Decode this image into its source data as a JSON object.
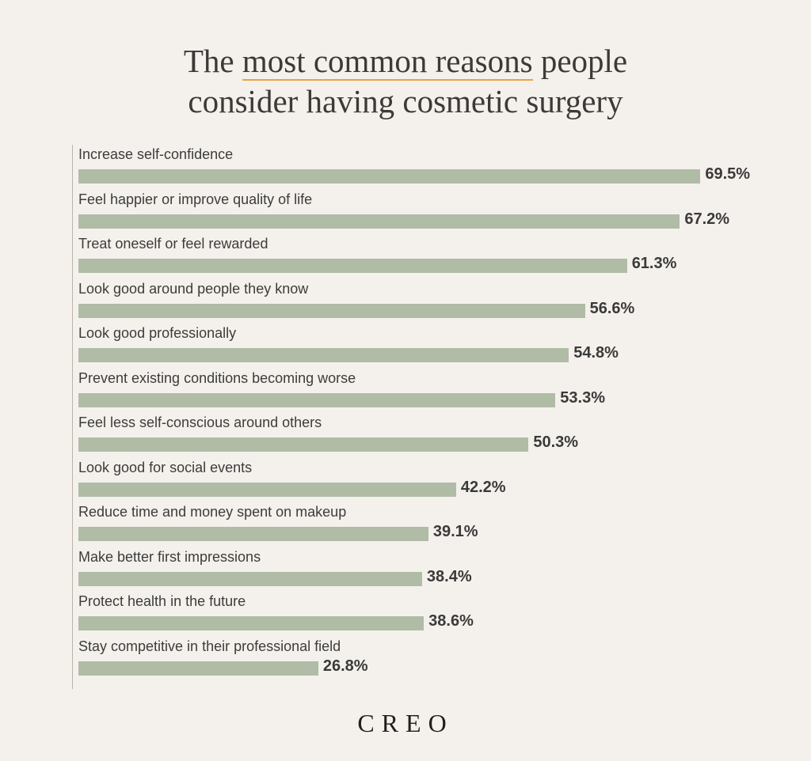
{
  "title": {
    "line1_prefix": "The ",
    "line1_highlight": "most common reasons",
    "line1_suffix": " people",
    "line2": "consider having cosmetic surgery"
  },
  "brand": "CREO",
  "colors": {
    "background": "#f4f1ec",
    "bar": "#b0bca6",
    "highlight_underline": "#e8a24a",
    "text": "#3a3a3a"
  },
  "chart_data": {
    "type": "bar",
    "orientation": "horizontal",
    "title": "The most common reasons people consider having cosmetic surgery",
    "xlabel": "",
    "ylabel": "",
    "xlim": [
      0,
      100
    ],
    "unit": "%",
    "grid": false,
    "categories": [
      "Increase self-confidence",
      "Feel happier or improve quality of life",
      "Treat oneself or feel rewarded",
      "Look good around people they know",
      "Look good professionally",
      "Prevent existing conditions becoming worse",
      "Feel less self-conscious around others",
      "Look good for social events",
      "Reduce time and money spent on makeup",
      "Make better first impressions",
      "Protect health in the future",
      "Stay competitive in their professional field"
    ],
    "values": [
      69.5,
      67.2,
      61.3,
      56.6,
      54.8,
      53.3,
      50.3,
      42.2,
      39.1,
      38.4,
      38.6,
      26.8
    ],
    "value_labels": [
      "69.5%",
      "67.2%",
      "61.3%",
      "56.6%",
      "54.8%",
      "53.3%",
      "50.3%",
      "42.2%",
      "39.1%",
      "38.4%",
      "38.6%",
      "26.8%"
    ]
  }
}
